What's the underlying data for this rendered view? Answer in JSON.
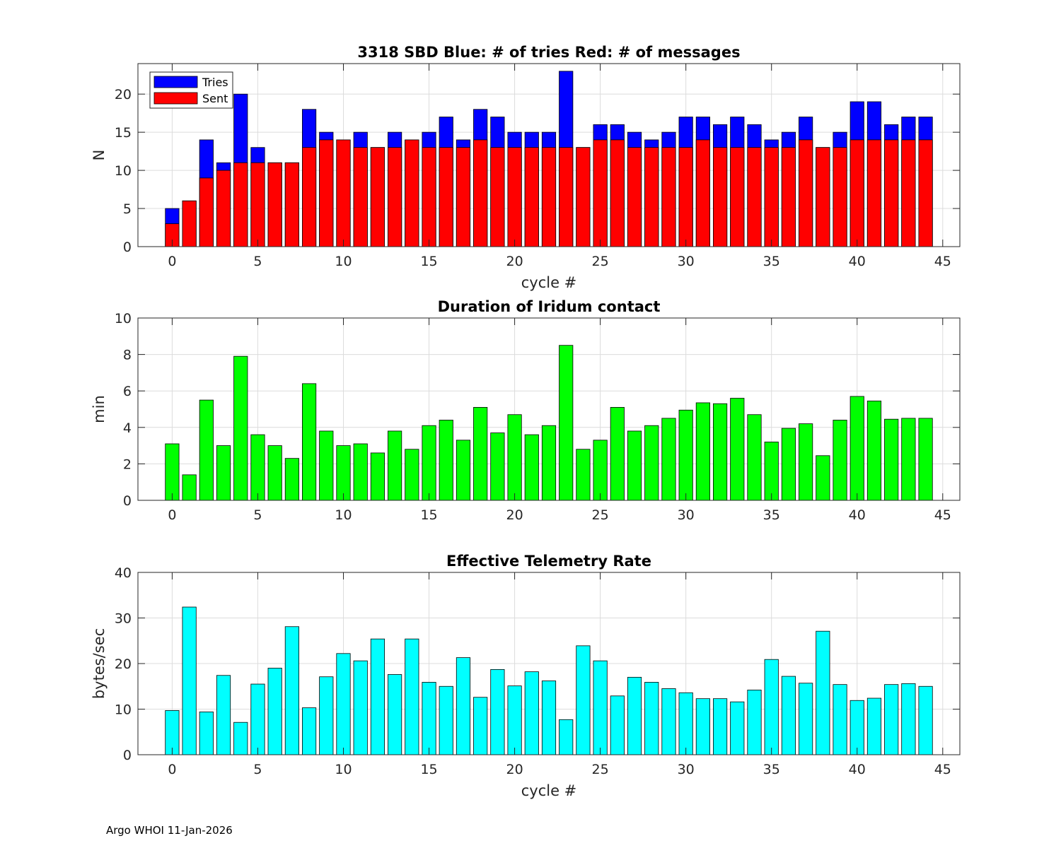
{
  "footer": "Argo WHOI 11-Jan-2026",
  "chart_data": [
    {
      "type": "bar",
      "stacked": "overlay",
      "title": "3318 SBD  Blue: # of tries   Red: # of messages",
      "xlabel": "cycle #",
      "ylabel": "N",
      "xlim": [
        -2,
        46
      ],
      "ylim": [
        0,
        24
      ],
      "xticks": [
        "0",
        "5",
        "10",
        "15",
        "20",
        "25",
        "30",
        "35",
        "40",
        "45"
      ],
      "yticks": [
        "0",
        "5",
        "10",
        "15",
        "20"
      ],
      "grid": true,
      "legend_position": "top-left",
      "x": [
        0,
        1,
        2,
        3,
        4,
        5,
        6,
        7,
        8,
        9,
        10,
        11,
        12,
        13,
        14,
        15,
        16,
        17,
        18,
        19,
        20,
        21,
        22,
        23,
        24,
        25,
        26,
        27,
        28,
        29,
        30,
        31,
        32,
        33,
        34,
        35,
        36,
        37,
        38,
        39,
        40,
        41,
        42,
        43,
        44
      ],
      "series": [
        {
          "name": "Tries",
          "color": "#0000ff",
          "values": [
            5,
            6,
            14,
            11,
            20,
            13,
            11,
            11,
            18,
            15,
            14,
            15,
            13,
            15,
            14,
            15,
            17,
            14,
            18,
            17,
            15,
            15,
            15,
            23,
            13,
            16,
            16,
            15,
            14,
            15,
            17,
            17,
            16,
            17,
            16,
            14,
            15,
            17,
            13,
            15,
            19,
            19,
            16,
            17,
            17
          ]
        },
        {
          "name": "Sent",
          "color": "#ff0000",
          "values": [
            3,
            6,
            9,
            10,
            11,
            11,
            11,
            11,
            13,
            14,
            14,
            13,
            13,
            13,
            14,
            13,
            13,
            13,
            14,
            13,
            13,
            13,
            13,
            13,
            13,
            14,
            14,
            13,
            13,
            13,
            13,
            14,
            13,
            13,
            13,
            13,
            13,
            14,
            13,
            13,
            14,
            14,
            14,
            14,
            14
          ]
        }
      ]
    },
    {
      "type": "bar",
      "title": "Duration of Iridum contact",
      "xlabel": "",
      "ylabel": "min",
      "xlim": [
        -2,
        46
      ],
      "ylim": [
        0,
        10
      ],
      "xticks": [
        "0",
        "5",
        "10",
        "15",
        "20",
        "25",
        "30",
        "35",
        "40",
        "45"
      ],
      "yticks": [
        "0",
        "2",
        "4",
        "6",
        "8",
        "10"
      ],
      "grid": true,
      "x": [
        -1,
        0,
        1,
        2,
        3,
        4,
        5,
        6,
        7,
        8,
        9,
        10,
        11,
        12,
        13,
        14,
        15,
        16,
        17,
        18,
        19,
        20,
        21,
        22,
        23,
        24,
        25,
        26,
        27,
        28,
        29,
        30,
        31,
        32,
        33,
        34,
        35,
        36,
        37,
        38,
        39,
        40,
        41,
        42,
        43,
        44
      ],
      "series": [
        {
          "name": "Duration",
          "color": "#00ff00",
          "values": [
            0,
            3.1,
            1.4,
            5.5,
            3.0,
            7.9,
            3.6,
            3.0,
            2.3,
            6.4,
            3.8,
            3.0,
            3.1,
            2.6,
            3.8,
            2.8,
            4.1,
            4.4,
            3.3,
            5.1,
            3.7,
            4.7,
            3.6,
            4.1,
            8.5,
            2.8,
            3.3,
            5.1,
            3.8,
            4.1,
            4.5,
            4.95,
            5.35,
            5.3,
            5.6,
            4.7,
            3.2,
            3.95,
            4.2,
            2.45,
            4.4,
            5.7,
            5.45,
            4.45,
            4.5,
            4.5
          ]
        }
      ]
    },
    {
      "type": "bar",
      "title": "Effective Telemetry Rate",
      "xlabel": "cycle #",
      "ylabel": "bytes/sec",
      "xlim": [
        -2,
        46
      ],
      "ylim": [
        0,
        40
      ],
      "xticks": [
        "0",
        "5",
        "10",
        "15",
        "20",
        "25",
        "30",
        "35",
        "40",
        "45"
      ],
      "yticks": [
        "0",
        "10",
        "20",
        "30",
        "40"
      ],
      "grid": true,
      "x": [
        0,
        1,
        2,
        3,
        4,
        5,
        6,
        7,
        8,
        9,
        10,
        11,
        12,
        13,
        14,
        15,
        16,
        17,
        18,
        19,
        20,
        21,
        22,
        23,
        24,
        25,
        26,
        27,
        28,
        29,
        30,
        31,
        32,
        33,
        34,
        35,
        36,
        37,
        38,
        39,
        40,
        41,
        42,
        43,
        44
      ],
      "series": [
        {
          "name": "Rate",
          "color": "#00ffff",
          "values": [
            9.7,
            32.4,
            9.4,
            17.4,
            7.1,
            15.5,
            19.0,
            28.1,
            10.3,
            17.1,
            22.2,
            20.6,
            25.4,
            17.6,
            25.4,
            15.9,
            15.0,
            21.3,
            12.6,
            18.7,
            15.1,
            18.2,
            16.2,
            7.7,
            23.9,
            20.6,
            12.9,
            17.0,
            15.9,
            14.5,
            13.6,
            12.3,
            12.3,
            11.6,
            14.2,
            20.9,
            17.2,
            15.7,
            27.1,
            15.4,
            11.9,
            12.4,
            15.4,
            15.6,
            15.0
          ]
        }
      ]
    }
  ]
}
